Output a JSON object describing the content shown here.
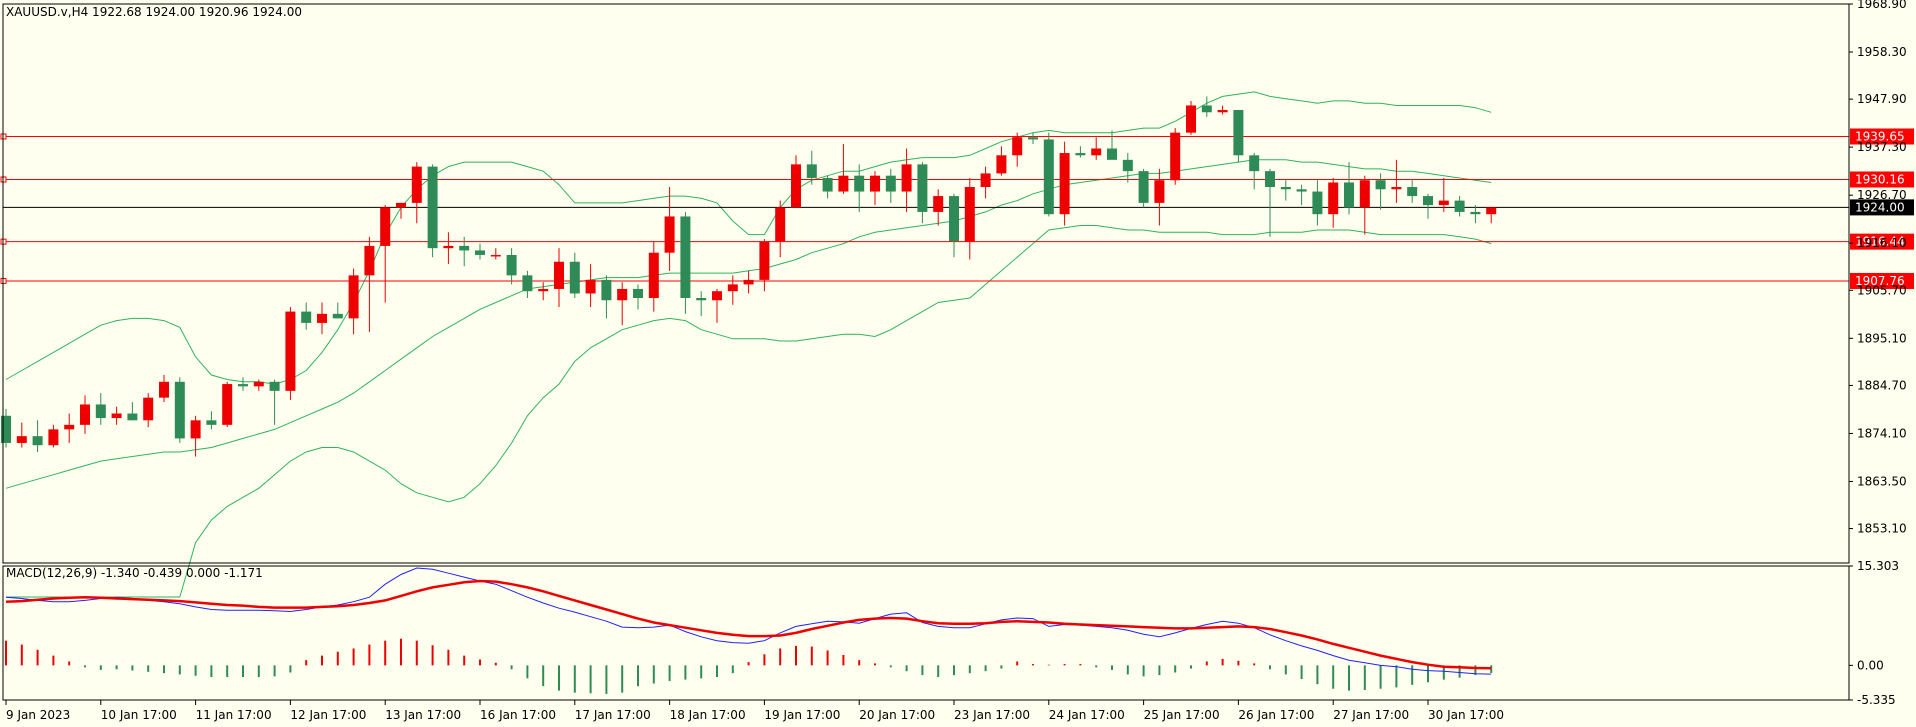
{
  "chart_data": {
    "type": "candlestick",
    "symbol_line": "XAUUSD.v,H4  1922.68 1924.00 1920.96 1924.00",
    "price_axis": {
      "ylim": [
        1845.5,
        1968.9
      ],
      "ticks": [
        "1968.90",
        "1958.30",
        "1947.90",
        "1937.30",
        "1926.70",
        "1916.10",
        "1905.70",
        "1895.10",
        "1884.70",
        "1874.10",
        "1863.50",
        "1853.10"
      ]
    },
    "current_price": {
      "value": 1924.0,
      "label": "1924.00"
    },
    "levels": [
      {
        "value": 1939.65,
        "label": "1939.65"
      },
      {
        "value": 1930.16,
        "label": "1930.16"
      },
      {
        "value": 1916.44,
        "label": "1916.44"
      },
      {
        "value": 1907.76,
        "label": "1907.76"
      }
    ],
    "time_labels": [
      {
        "label": "9 Jan 2023",
        "bar": 0
      },
      {
        "label": "10 Jan 17:00",
        "bar": 6
      },
      {
        "label": "11 Jan 17:00",
        "bar": 12
      },
      {
        "label": "12 Jan 17:00",
        "bar": 18
      },
      {
        "label": "13 Jan 17:00",
        "bar": 24
      },
      {
        "label": "16 Jan 17:00",
        "bar": 30
      },
      {
        "label": "17 Jan 17:00",
        "bar": 36
      },
      {
        "label": "18 Jan 17:00",
        "bar": 42
      },
      {
        "label": "19 Jan 17:00",
        "bar": 48
      },
      {
        "label": "20 Jan 17:00",
        "bar": 54
      },
      {
        "label": "23 Jan 17:00",
        "bar": 60
      },
      {
        "label": "24 Jan 17:00",
        "bar": 66
      },
      {
        "label": "25 Jan 17:00",
        "bar": 72
      },
      {
        "label": "26 Jan 17:00",
        "bar": 78
      },
      {
        "label": "27 Jan 17:00",
        "bar": 84
      },
      {
        "label": "30 Jan 17:00",
        "bar": 90
      }
    ],
    "candles": [
      [
        1878.0,
        1879.5,
        1871.0,
        1872.0
      ],
      [
        1872.0,
        1876.5,
        1871.0,
        1873.5
      ],
      [
        1873.5,
        1877.0,
        1870.0,
        1871.5
      ],
      [
        1871.5,
        1876.0,
        1871.0,
        1875.0
      ],
      [
        1875.0,
        1878.5,
        1872.0,
        1876.0
      ],
      [
        1876.0,
        1882.5,
        1874.0,
        1880.5
      ],
      [
        1880.5,
        1883.0,
        1876.0,
        1877.5
      ],
      [
        1877.5,
        1880.0,
        1876.0,
        1878.5
      ],
      [
        1878.5,
        1881.0,
        1877.0,
        1877.0
      ],
      [
        1877.0,
        1883.0,
        1875.5,
        1882.0
      ],
      [
        1882.0,
        1887.0,
        1881.0,
        1885.5
      ],
      [
        1885.5,
        1886.5,
        1872.0,
        1873.0
      ],
      [
        1873.0,
        1878.0,
        1869.0,
        1877.0
      ],
      [
        1877.0,
        1879.0,
        1875.0,
        1876.0
      ],
      [
        1876.0,
        1885.5,
        1875.5,
        1885.0
      ],
      [
        1885.0,
        1886.5,
        1883.5,
        1884.5
      ],
      [
        1884.5,
        1886.0,
        1883.5,
        1885.5
      ],
      [
        1885.5,
        1886.0,
        1876.0,
        1883.5
      ],
      [
        1883.5,
        1902.0,
        1881.5,
        1901.0
      ],
      [
        1901.0,
        1903.0,
        1897.0,
        1898.5
      ],
      [
        1898.5,
        1903.0,
        1896.0,
        1900.5
      ],
      [
        1900.5,
        1903.0,
        1899.5,
        1899.5
      ],
      [
        1899.5,
        1910.5,
        1896.0,
        1909.0
      ],
      [
        1909.0,
        1917.5,
        1896.5,
        1915.5
      ],
      [
        1915.5,
        1924.5,
        1903.0,
        1924.0
      ],
      [
        1924.0,
        1925.0,
        1921.5,
        1925.0
      ],
      [
        1925.0,
        1934.0,
        1920.5,
        1933.0
      ],
      [
        1933.0,
        1933.5,
        1913.0,
        1915.0
      ],
      [
        1915.0,
        1918.5,
        1911.5,
        1915.5
      ],
      [
        1915.5,
        1917.5,
        1911.0,
        1914.5
      ],
      [
        1914.5,
        1916.0,
        1912.5,
        1913.5
      ],
      [
        1913.5,
        1915.0,
        1912.5,
        1913.5
      ],
      [
        1913.5,
        1915.0,
        1907.0,
        1909.0
      ],
      [
        1909.0,
        1910.0,
        1904.0,
        1905.5
      ],
      [
        1905.5,
        1907.5,
        1903.5,
        1906.0
      ],
      [
        1906.0,
        1915.0,
        1902.0,
        1912.0
      ],
      [
        1912.0,
        1914.0,
        1904.0,
        1905.0
      ],
      [
        1905.0,
        1911.5,
        1902.0,
        1908.0
      ],
      [
        1908.0,
        1909.0,
        1899.5,
        1903.5
      ],
      [
        1903.5,
        1907.5,
        1898.0,
        1906.0
      ],
      [
        1906.0,
        1907.0,
        1901.5,
        1904.0
      ],
      [
        1904.0,
        1916.5,
        1901.0,
        1914.0
      ],
      [
        1914.0,
        1928.5,
        1910.0,
        1922.0
      ],
      [
        1922.0,
        1923.0,
        1900.5,
        1904.0
      ],
      [
        1904.0,
        1905.5,
        1900.0,
        1903.5
      ],
      [
        1903.5,
        1906.0,
        1898.5,
        1905.5
      ],
      [
        1905.5,
        1909.0,
        1902.5,
        1907.0
      ],
      [
        1907.0,
        1910.0,
        1905.0,
        1908.0
      ],
      [
        1908.0,
        1917.0,
        1905.5,
        1916.5
      ],
      [
        1916.5,
        1925.5,
        1913.0,
        1924.0
      ],
      [
        1924.0,
        1935.5,
        1924.0,
        1933.5
      ],
      [
        1933.5,
        1936.5,
        1929.0,
        1930.5
      ],
      [
        1930.5,
        1931.0,
        1926.0,
        1927.5
      ],
      [
        1927.5,
        1938.0,
        1927.0,
        1931.0
      ],
      [
        1931.0,
        1933.5,
        1923.0,
        1927.5
      ],
      [
        1927.5,
        1932.0,
        1924.5,
        1931.0
      ],
      [
        1931.0,
        1932.5,
        1925.0,
        1927.5
      ],
      [
        1927.5,
        1937.0,
        1923.0,
        1933.5
      ],
      [
        1933.5,
        1934.0,
        1920.5,
        1923.0
      ],
      [
        1923.0,
        1928.0,
        1920.0,
        1926.5
      ],
      [
        1926.5,
        1927.0,
        1913.0,
        1916.5
      ],
      [
        1916.5,
        1930.5,
        1912.5,
        1928.5
      ],
      [
        1928.5,
        1933.0,
        1926.0,
        1931.5
      ],
      [
        1931.5,
        1937.5,
        1931.0,
        1935.5
      ],
      [
        1935.5,
        1940.5,
        1933.0,
        1939.5
      ],
      [
        1939.5,
        1940.5,
        1938.0,
        1939.0
      ],
      [
        1939.0,
        1940.5,
        1922.0,
        1922.5
      ],
      [
        1922.5,
        1938.5,
        1920.0,
        1936.0
      ],
      [
        1936.0,
        1937.5,
        1935.0,
        1935.5
      ],
      [
        1935.5,
        1939.5,
        1934.5,
        1937.0
      ],
      [
        1937.0,
        1941.0,
        1935.0,
        1934.5
      ],
      [
        1934.5,
        1936.0,
        1929.5,
        1932.0
      ],
      [
        1932.0,
        1932.5,
        1924.0,
        1925.0
      ],
      [
        1925.0,
        1932.5,
        1920.0,
        1930.0
      ],
      [
        1930.0,
        1941.5,
        1929.0,
        1940.5
      ],
      [
        1940.5,
        1947.5,
        1940.0,
        1946.5
      ],
      [
        1946.5,
        1948.5,
        1944.0,
        1945.0
      ],
      [
        1945.0,
        1946.5,
        1944.5,
        1945.5
      ],
      [
        1945.5,
        1945.5,
        1934.0,
        1935.5
      ],
      [
        1935.5,
        1936.0,
        1928.0,
        1932.0
      ],
      [
        1932.0,
        1932.5,
        1917.5,
        1928.5
      ],
      [
        1928.5,
        1930.0,
        1925.5,
        1928.0
      ],
      [
        1928.0,
        1929.0,
        1924.5,
        1927.5
      ],
      [
        1927.5,
        1930.0,
        1920.0,
        1922.5
      ],
      [
        1922.5,
        1930.5,
        1919.5,
        1929.5
      ],
      [
        1929.5,
        1934.0,
        1922.5,
        1924.0
      ],
      [
        1924.0,
        1931.0,
        1918.0,
        1930.0
      ],
      [
        1930.0,
        1931.5,
        1923.5,
        1928.0
      ],
      [
        1928.0,
        1934.5,
        1925.0,
        1928.5
      ],
      [
        1928.5,
        1930.0,
        1925.0,
        1926.5
      ],
      [
        1926.5,
        1927.0,
        1921.5,
        1924.5
      ],
      [
        1924.5,
        1930.5,
        1923.0,
        1925.5
      ],
      [
        1925.5,
        1926.5,
        1922.0,
        1923.0
      ],
      [
        1923.0,
        1924.5,
        1920.5,
        1922.5
      ],
      [
        1922.5,
        1924.0,
        1920.5,
        1924.0
      ]
    ],
    "bollinger": {
      "upper": [
        1886,
        1888,
        1890,
        1892,
        1894,
        1896,
        1898,
        1899,
        1899.5,
        1899.5,
        1899,
        1897.5,
        1891,
        1887,
        1886,
        1885.5,
        1885.5,
        1885,
        1886,
        1888,
        1892,
        1897,
        1903,
        1910,
        1918,
        1924,
        1928,
        1931,
        1933,
        1934,
        1934,
        1934,
        1934,
        1933,
        1932,
        1929,
        1925,
        1925,
        1925,
        1925,
        1925.5,
        1926,
        1926.5,
        1926.5,
        1926,
        1925,
        1921,
        1918,
        1918,
        1924,
        1928,
        1930,
        1931,
        1932,
        1932,
        1933,
        1934,
        1934.5,
        1935,
        1935,
        1935,
        1935.5,
        1937,
        1938.5,
        1939.5,
        1940.5,
        1941,
        1940.5,
        1940.5,
        1940.5,
        1940.5,
        1941,
        1941.5,
        1941.5,
        1943,
        1945,
        1947,
        1948.5,
        1949,
        1949.5,
        1948.5,
        1948,
        1947.5,
        1947,
        1947.5,
        1947.5,
        1947,
        1947,
        1946.5,
        1946.5,
        1946.5,
        1946.5,
        1946.5,
        1946,
        1945
      ],
      "middle": [
        1862,
        1863,
        1864,
        1865,
        1866,
        1867,
        1868,
        1868.5,
        1869,
        1869.5,
        1870,
        1870,
        1870.5,
        1871,
        1872,
        1873,
        1874,
        1875,
        1876.5,
        1878,
        1879.5,
        1881,
        1883,
        1885.5,
        1888,
        1890.5,
        1893,
        1895.5,
        1897.5,
        1899.5,
        1901.5,
        1903,
        1904.5,
        1906,
        1906.5,
        1907,
        1907.5,
        1908,
        1908.5,
        1908.5,
        1908.5,
        1909,
        1909.5,
        1909.5,
        1909.5,
        1909.5,
        1909.5,
        1910,
        1910.5,
        1911.5,
        1912.5,
        1914,
        1915,
        1916,
        1917.5,
        1918.5,
        1919,
        1919.5,
        1920,
        1920.5,
        1921,
        1922,
        1923,
        1924.5,
        1925.5,
        1927,
        1928,
        1929,
        1929.5,
        1930,
        1930.5,
        1931,
        1931.5,
        1931.5,
        1932,
        1932.5,
        1933,
        1933.5,
        1934,
        1934.5,
        1934.5,
        1934.5,
        1934,
        1934,
        1933.5,
        1933,
        1932.5,
        1932.5,
        1932,
        1932,
        1931.5,
        1931,
        1930.5,
        1930,
        1929.5
      ],
      "lower": [
        1838,
        1838,
        1838,
        1838,
        1838,
        1838,
        1838,
        1838,
        1838,
        1838,
        1838,
        1838,
        1850,
        1855,
        1858,
        1860,
        1862,
        1865,
        1868,
        1870,
        1871,
        1871,
        1870,
        1868,
        1866,
        1863,
        1861,
        1860,
        1859,
        1860,
        1863,
        1867,
        1872,
        1878,
        1882,
        1885,
        1890,
        1893,
        1895,
        1897,
        1898,
        1899,
        1899.5,
        1899,
        1897,
        1896,
        1895,
        1895,
        1895,
        1894.5,
        1894.5,
        1895,
        1895.5,
        1896,
        1896,
        1895.5,
        1897,
        1899,
        1901,
        1903,
        1903.5,
        1904,
        1907,
        1910,
        1913,
        1916,
        1919,
        1919.5,
        1920,
        1920,
        1919.5,
        1919,
        1919,
        1918.5,
        1918.5,
        1918.5,
        1918.5,
        1918,
        1918,
        1918,
        1918.5,
        1918.5,
        1918.5,
        1919,
        1919,
        1919,
        1918.5,
        1918,
        1918,
        1918,
        1918,
        1918,
        1917.5,
        1917,
        1916
      ]
    },
    "macd": {
      "label": "MACD(12,26,9) -1.340 -0.439 0.000 -1.171",
      "ylim": [
        -5.335,
        15.303
      ],
      "ticks": [
        "15.303",
        "0.00",
        "-5.335"
      ],
      "main": [
        10.5,
        10.3,
        10.0,
        9.8,
        9.8,
        10.0,
        10.3,
        10.5,
        10.3,
        10.0,
        9.8,
        9.5,
        9.0,
        8.6,
        8.5,
        8.5,
        8.5,
        8.4,
        8.3,
        8.6,
        9.0,
        9.3,
        9.8,
        10.5,
        12.5,
        14.0,
        15.0,
        14.8,
        14.2,
        13.6,
        13.0,
        12.5,
        11.5,
        10.5,
        9.6,
        8.8,
        8.2,
        7.5,
        6.8,
        5.9,
        5.8,
        5.9,
        6.2,
        5.2,
        4.4,
        3.8,
        3.5,
        3.4,
        3.8,
        5.0,
        6.0,
        6.4,
        6.8,
        6.7,
        6.5,
        7.2,
        7.9,
        8.1,
        6.6,
        6.0,
        5.8,
        5.8,
        6.4,
        7.0,
        7.3,
        7.2,
        6.0,
        6.3,
        6.2,
        6.0,
        5.8,
        5.4,
        4.8,
        4.4,
        5.0,
        5.7,
        6.3,
        6.8,
        6.5,
        5.8,
        4.7,
        3.8,
        3.0,
        2.3,
        1.5,
        0.8,
        0.4,
        0.0,
        -0.2,
        -0.6,
        -0.8,
        -0.9,
        -1.1,
        -1.3,
        -1.34
      ],
      "signal": [
        9.8,
        9.9,
        10.1,
        10.3,
        10.4,
        10.5,
        10.4,
        10.3,
        10.2,
        10.1,
        10.0,
        9.9,
        9.7,
        9.5,
        9.3,
        9.2,
        9.0,
        8.9,
        8.9,
        8.9,
        9.0,
        9.1,
        9.3,
        9.6,
        10.0,
        10.7,
        11.4,
        12.0,
        12.4,
        12.8,
        13.0,
        12.9,
        12.5,
        12.0,
        11.4,
        10.7,
        10.0,
        9.3,
        8.6,
        7.9,
        7.2,
        6.6,
        6.2,
        5.8,
        5.4,
        5.0,
        4.7,
        4.5,
        4.5,
        4.6,
        5.0,
        5.6,
        6.1,
        6.6,
        7.0,
        7.2,
        7.3,
        7.2,
        6.8,
        6.5,
        6.4,
        6.4,
        6.5,
        6.7,
        6.8,
        6.7,
        6.6,
        6.4,
        6.3,
        6.2,
        6.1,
        6.0,
        5.9,
        5.8,
        5.7,
        5.7,
        5.8,
        5.9,
        6.0,
        5.9,
        5.6,
        5.1,
        4.6,
        4.0,
        3.3,
        2.7,
        2.1,
        1.5,
        1.0,
        0.5,
        0.1,
        -0.2,
        -0.3,
        -0.4,
        -0.44
      ],
      "histogram": [
        3.8,
        3.2,
        2.4,
        1.5,
        0.6,
        -0.3,
        -0.7,
        -0.6,
        -0.8,
        -1.0,
        -1.2,
        -1.4,
        -1.6,
        -1.8,
        -1.8,
        -1.8,
        -1.8,
        -1.7,
        -1.1,
        0.8,
        1.5,
        2.1,
        2.6,
        3.2,
        3.8,
        4.1,
        3.8,
        3.1,
        2.4,
        1.5,
        0.9,
        0.4,
        -0.6,
        -2.0,
        -3.2,
        -3.9,
        -4.2,
        -4.3,
        -4.4,
        -4.2,
        -3.2,
        -2.8,
        -2.4,
        -2.2,
        -2.0,
        -1.8,
        -1.2,
        0.5,
        1.7,
        2.6,
        3.0,
        2.9,
        2.3,
        1.6,
        0.8,
        0.3,
        -0.3,
        -0.9,
        -1.5,
        -1.8,
        -1.5,
        -1.2,
        -0.9,
        -0.5,
        0.6,
        0.2,
        0.1,
        0.2,
        0.2,
        -0.3,
        -0.7,
        -1.4,
        -1.7,
        -1.5,
        -1.1,
        -0.5,
        0.6,
        1.0,
        0.7,
        0.3,
        -0.6,
        -1.4,
        -2.1,
        -2.9,
        -3.6,
        -3.9,
        -3.8,
        -3.6,
        -3.4,
        -3.0,
        -2.6,
        -2.2,
        -1.9,
        -1.5,
        -1.17
      ]
    },
    "colors": {
      "background": "#fffff0",
      "bull": "#ee0000",
      "bear": "#2e8b57",
      "band": "#2eb35f",
      "levels": "#ff0000",
      "macd_main": "#2020ff",
      "macd_signal": "#ee0000",
      "current_box": "#000000"
    }
  }
}
